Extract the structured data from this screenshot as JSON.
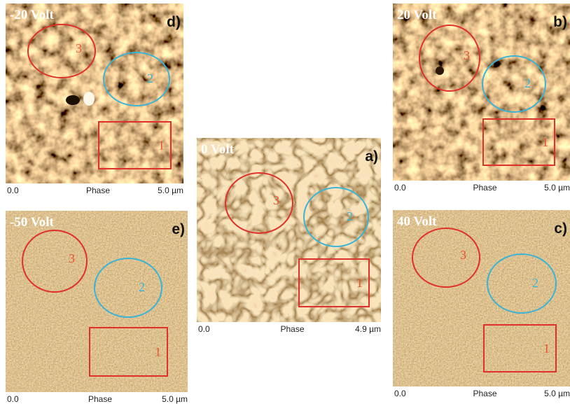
{
  "panels": [
    {
      "tag": "d)",
      "voltage": "-20 Volt",
      "axis": {
        "start": "0.0",
        "title": "Phase",
        "end": "5.0 µm"
      },
      "regions": [
        "3",
        "2",
        "1"
      ]
    },
    {
      "tag": "b)",
      "voltage": "20 Volt",
      "axis": {
        "start": "0.0",
        "title": "Phase",
        "end": "5.0 µm"
      },
      "regions": [
        "3",
        "2",
        "1"
      ]
    },
    {
      "tag": "a)",
      "voltage": "0 Volt",
      "axis": {
        "start": "0.0",
        "title": "Phase",
        "end": "4.9 µm"
      },
      "regions": [
        "3",
        "2",
        "1"
      ]
    },
    {
      "tag": "e)",
      "voltage": "-50 Volt",
      "axis": {
        "start": "0.0",
        "title": "Phase",
        "end": "5.0 µm"
      },
      "regions": [
        "3",
        "2",
        "1"
      ]
    },
    {
      "tag": "c)",
      "voltage": "40 Volt",
      "axis": {
        "start": "0.0",
        "title": "Phase",
        "end": "5.0 µm"
      },
      "regions": [
        "3",
        "2",
        "1"
      ]
    }
  ]
}
